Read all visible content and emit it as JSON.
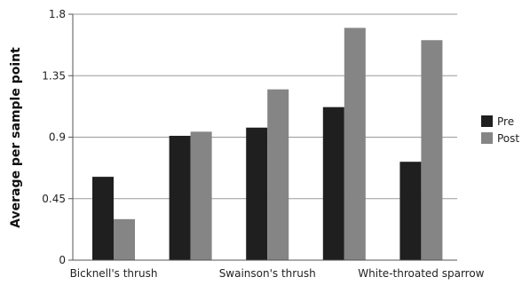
{
  "chart_data": {
    "type": "bar",
    "title": "",
    "ylabel": "Average per sample point",
    "xlabel": "",
    "ylim": [
      0,
      1.8
    ],
    "yticks": [
      "0",
      "0.45",
      "0.9",
      "1.35",
      "1.8"
    ],
    "ytick_values": [
      0,
      0.45,
      0.9,
      1.35,
      1.8
    ],
    "categories": [
      "Bicknell's thrush",
      "",
      "Swainson's thrush",
      "",
      "White-throated sparrow"
    ],
    "series": [
      {
        "name": "Pre",
        "color": "#1f1f1f",
        "values": [
          0.61,
          0.91,
          0.97,
          1.12,
          0.72
        ]
      },
      {
        "name": "Post",
        "color": "#858585",
        "values": [
          0.3,
          0.94,
          1.25,
          1.7,
          1.61
        ]
      }
    ],
    "grid": true,
    "legend_position": "right"
  }
}
